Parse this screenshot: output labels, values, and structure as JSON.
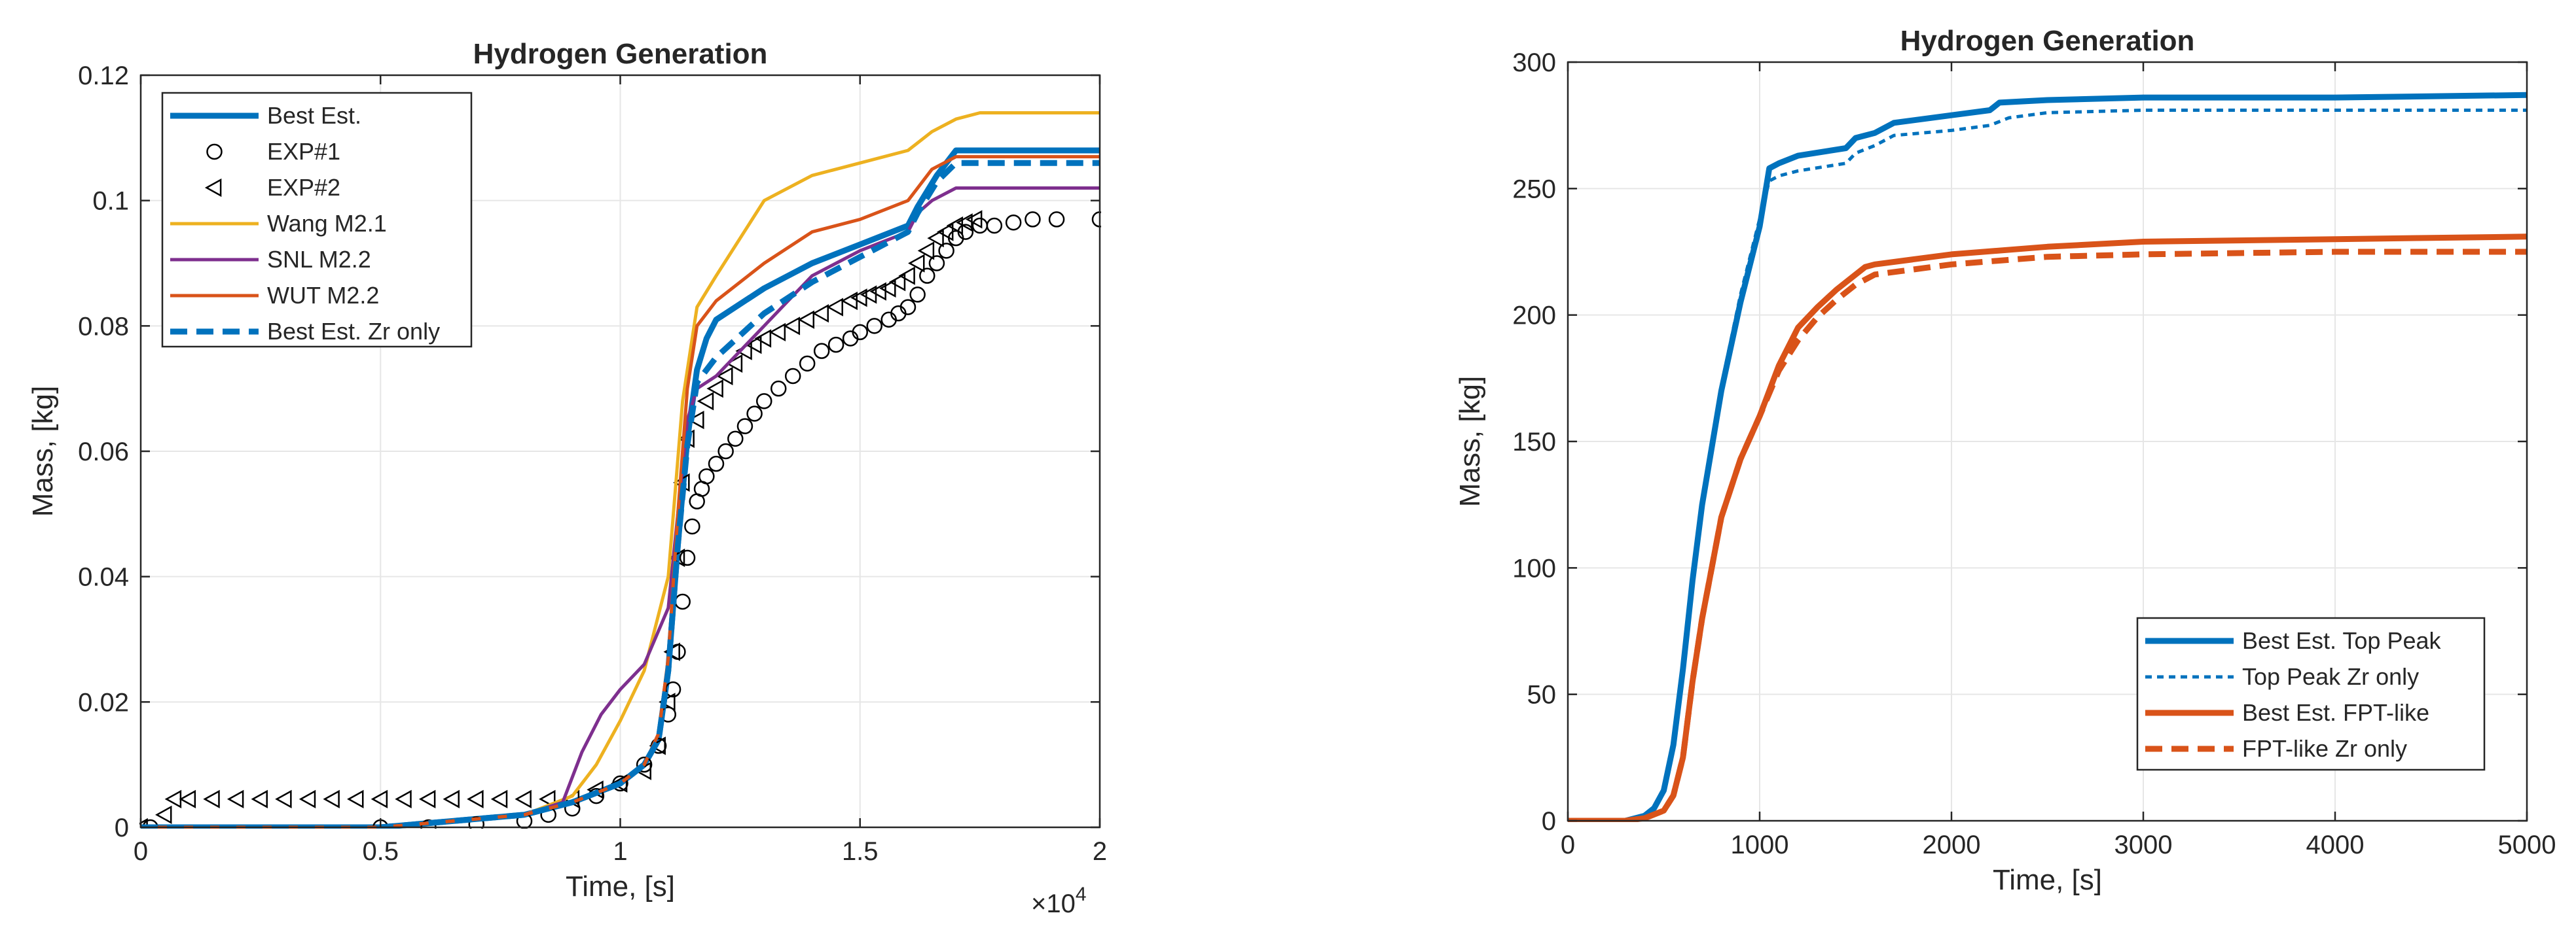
{
  "chart_data": [
    {
      "type": "line",
      "title": "Hydrogen Generation",
      "xlabel": "Time, [s]",
      "ylabel": "Mass, [kg]",
      "x_multiplier_label": "×10",
      "x_multiplier_exponent": "4",
      "xlim": [
        0,
        2
      ],
      "ylim": [
        0,
        0.12
      ],
      "xticks": [
        0,
        0.5,
        1,
        1.5,
        2
      ],
      "xtick_labels": [
        "0",
        "0.5",
        "1",
        "1.5",
        "2"
      ],
      "yticks": [
        0,
        0.02,
        0.04,
        0.06,
        0.08,
        0.1,
        0.12
      ],
      "ytick_labels": [
        "0",
        "0.02",
        "0.04",
        "0.06",
        "0.08",
        "0.1",
        "0.12"
      ],
      "grid": true,
      "legend_location": "top-left",
      "series": [
        {
          "name": "Best Est.",
          "style": "solid",
          "color": "#0072BD",
          "width": "thick",
          "x": [
            0,
            0.5,
            0.8,
            0.9,
            1.0,
            1.05,
            1.08,
            1.1,
            1.12,
            1.14,
            1.16,
            1.18,
            1.2,
            1.3,
            1.4,
            1.5,
            1.6,
            1.62,
            1.66,
            1.7,
            2.0
          ],
          "y": [
            0,
            0,
            0.002,
            0.004,
            0.007,
            0.01,
            0.014,
            0.025,
            0.045,
            0.062,
            0.073,
            0.078,
            0.081,
            0.086,
            0.09,
            0.093,
            0.096,
            0.099,
            0.104,
            0.108,
            0.108
          ]
        },
        {
          "name": "EXP#1",
          "style": "marker",
          "marker": "circle",
          "color": "#000000",
          "x": [
            0.02,
            0.5,
            0.6,
            0.7,
            0.8,
            0.85,
            0.9,
            0.95,
            1.0,
            1.05,
            1.08,
            1.1,
            1.11,
            1.12,
            1.13,
            1.14,
            1.15,
            1.16,
            1.17,
            1.18,
            1.2,
            1.22,
            1.24,
            1.26,
            1.28,
            1.3,
            1.33,
            1.36,
            1.39,
            1.42,
            1.45,
            1.48,
            1.5,
            1.53,
            1.56,
            1.58,
            1.6,
            1.62,
            1.64,
            1.66,
            1.68,
            1.7,
            1.72,
            1.75,
            1.78,
            1.82,
            1.86,
            1.91,
            2.0
          ],
          "y": [
            0,
            0,
            0,
            0.0005,
            0.001,
            0.002,
            0.003,
            0.005,
            0.007,
            0.01,
            0.013,
            0.018,
            0.022,
            0.028,
            0.036,
            0.043,
            0.048,
            0.052,
            0.054,
            0.056,
            0.058,
            0.06,
            0.062,
            0.064,
            0.066,
            0.068,
            0.07,
            0.072,
            0.074,
            0.076,
            0.077,
            0.078,
            0.079,
            0.08,
            0.081,
            0.082,
            0.083,
            0.085,
            0.088,
            0.09,
            0.092,
            0.094,
            0.095,
            0.096,
            0.096,
            0.0965,
            0.097,
            0.097,
            0.097
          ]
        },
        {
          "name": "EXP#2",
          "style": "marker",
          "marker": "triangle-left",
          "color": "#000000",
          "x": [
            0,
            0.05,
            0.07,
            0.1,
            0.15,
            0.2,
            0.25,
            0.3,
            0.35,
            0.4,
            0.45,
            0.5,
            0.55,
            0.6,
            0.65,
            0.7,
            0.75,
            0.8,
            0.85,
            0.9,
            0.95,
            1.0,
            1.05,
            1.08,
            1.1,
            1.11,
            1.12,
            1.13,
            1.14,
            1.16,
            1.18,
            1.2,
            1.22,
            1.24,
            1.26,
            1.28,
            1.3,
            1.33,
            1.36,
            1.39,
            1.42,
            1.45,
            1.48,
            1.5,
            1.52,
            1.54,
            1.56,
            1.58,
            1.6,
            1.62,
            1.64,
            1.66,
            1.68,
            1.7,
            1.72,
            1.74
          ],
          "y": [
            0,
            0.002,
            0.0045,
            0.0045,
            0.0045,
            0.0045,
            0.0045,
            0.0045,
            0.0045,
            0.0045,
            0.0045,
            0.0045,
            0.0045,
            0.0045,
            0.0045,
            0.0045,
            0.0045,
            0.0045,
            0.0045,
            0.0045,
            0.006,
            0.007,
            0.009,
            0.013,
            0.02,
            0.028,
            0.043,
            0.055,
            0.062,
            0.065,
            0.068,
            0.07,
            0.072,
            0.074,
            0.076,
            0.077,
            0.078,
            0.079,
            0.08,
            0.081,
            0.082,
            0.083,
            0.084,
            0.0845,
            0.085,
            0.0855,
            0.086,
            0.087,
            0.088,
            0.09,
            0.092,
            0.094,
            0.095,
            0.096,
            0.0965,
            0.097
          ]
        },
        {
          "name": "Wang M2.1",
          "style": "solid",
          "color": "#EDB120",
          "width": "normal",
          "x": [
            0,
            0.5,
            0.8,
            0.9,
            0.95,
            1.0,
            1.05,
            1.1,
            1.13,
            1.16,
            1.2,
            1.3,
            1.4,
            1.5,
            1.6,
            1.65,
            1.7,
            1.75,
            2.0
          ],
          "y": [
            0,
            0,
            0.002,
            0.005,
            0.01,
            0.017,
            0.025,
            0.04,
            0.068,
            0.083,
            0.088,
            0.1,
            0.104,
            0.106,
            0.108,
            0.111,
            0.113,
            0.114,
            0.114
          ]
        },
        {
          "name": "SNL M2.2",
          "style": "solid",
          "color": "#7E2F8E",
          "width": "normal",
          "x": [
            0,
            0.5,
            0.8,
            0.88,
            0.92,
            0.96,
            1.0,
            1.05,
            1.1,
            1.12,
            1.14,
            1.16,
            1.2,
            1.3,
            1.4,
            1.5,
            1.6,
            1.62,
            1.65,
            1.7,
            2.0
          ],
          "y": [
            0,
            0,
            0.002,
            0.004,
            0.012,
            0.018,
            0.022,
            0.026,
            0.035,
            0.05,
            0.065,
            0.07,
            0.072,
            0.08,
            0.088,
            0.092,
            0.095,
            0.098,
            0.1,
            0.102,
            0.102
          ]
        },
        {
          "name": "WUT M2.2",
          "style": "solid",
          "color": "#D95319",
          "width": "normal",
          "x": [
            0,
            0.5,
            0.8,
            0.9,
            1.0,
            1.05,
            1.08,
            1.1,
            1.12,
            1.14,
            1.16,
            1.2,
            1.3,
            1.4,
            1.5,
            1.6,
            1.62,
            1.65,
            1.7,
            2.0
          ],
          "y": [
            0,
            0,
            0.002,
            0.004,
            0.007,
            0.01,
            0.015,
            0.027,
            0.05,
            0.07,
            0.08,
            0.084,
            0.09,
            0.095,
            0.097,
            0.1,
            0.102,
            0.105,
            0.107,
            0.107
          ]
        },
        {
          "name": "Best Est. Zr only",
          "style": "dashed",
          "color": "#0072BD",
          "width": "thick",
          "x": [
            0,
            0.5,
            0.8,
            0.9,
            1.0,
            1.05,
            1.08,
            1.1,
            1.12,
            1.14,
            1.16,
            1.2,
            1.3,
            1.4,
            1.5,
            1.6,
            1.62,
            1.66,
            1.7,
            2.0
          ],
          "y": [
            0,
            0,
            0.002,
            0.004,
            0.007,
            0.01,
            0.014,
            0.025,
            0.045,
            0.061,
            0.071,
            0.075,
            0.082,
            0.087,
            0.091,
            0.095,
            0.098,
            0.103,
            0.106,
            0.106
          ]
        }
      ]
    },
    {
      "type": "line",
      "title": "Hydrogen Generation",
      "xlabel": "Time, [s]",
      "ylabel": "Mass, [kg]",
      "xlim": [
        0,
        5000
      ],
      "ylim": [
        0,
        300
      ],
      "xticks": [
        0,
        1000,
        2000,
        3000,
        4000,
        5000
      ],
      "xtick_labels": [
        "0",
        "1000",
        "2000",
        "3000",
        "4000",
        "5000"
      ],
      "yticks": [
        0,
        50,
        100,
        150,
        200,
        250,
        300
      ],
      "ytick_labels": [
        "0",
        "50",
        "100",
        "150",
        "200",
        "250",
        "300"
      ],
      "grid": true,
      "legend_location": "bottom-right",
      "series": [
        {
          "name": "Best Est. Top Peak",
          "style": "solid",
          "color": "#0072BD",
          "width": "thick",
          "x": [
            0,
            300,
            400,
            450,
            500,
            550,
            600,
            650,
            700,
            800,
            900,
            1000,
            1050,
            1100,
            1200,
            1450,
            1500,
            1600,
            1700,
            2000,
            2200,
            2250,
            2500,
            3000,
            4000,
            5000
          ],
          "y": [
            0,
            0,
            2,
            5,
            12,
            30,
            60,
            95,
            125,
            170,
            205,
            235,
            258,
            260,
            263,
            266,
            270,
            272,
            276,
            279,
            281,
            284,
            285,
            286,
            286,
            287
          ]
        },
        {
          "name": "Top Peak Zr only",
          "style": "dotted",
          "color": "#0072BD",
          "width": "normal",
          "x": [
            0,
            300,
            400,
            450,
            500,
            550,
            600,
            650,
            700,
            800,
            900,
            1000,
            1050,
            1100,
            1200,
            1450,
            1500,
            1600,
            1700,
            2000,
            2200,
            2300,
            2500,
            3000,
            4000,
            5000
          ],
          "y": [
            0,
            0,
            2,
            5,
            12,
            30,
            60,
            95,
            125,
            172,
            208,
            238,
            253,
            255,
            257,
            260,
            264,
            267,
            271,
            273,
            275,
            278,
            280,
            281,
            281,
            281
          ]
        },
        {
          "name": "Best Est. FPT-like",
          "style": "solid",
          "color": "#D95319",
          "width": "thick",
          "x": [
            0,
            300,
            400,
            500,
            550,
            600,
            650,
            700,
            750,
            800,
            900,
            1000,
            1100,
            1200,
            1300,
            1400,
            1500,
            1550,
            1600,
            1800,
            2000,
            2500,
            3000,
            4000,
            5000
          ],
          "y": [
            0,
            0,
            1,
            4,
            10,
            25,
            55,
            80,
            100,
            120,
            143,
            160,
            180,
            195,
            203,
            210,
            216,
            219,
            220,
            222,
            224,
            227,
            229,
            230,
            231
          ]
        },
        {
          "name": "FPT-like Zr only",
          "style": "dashed",
          "color": "#D95319",
          "width": "thick",
          "x": [
            0,
            300,
            400,
            500,
            550,
            600,
            650,
            700,
            750,
            800,
            900,
            1000,
            1100,
            1200,
            1300,
            1400,
            1500,
            1550,
            1600,
            1800,
            2000,
            2500,
            3000,
            4000,
            5000
          ],
          "y": [
            0,
            0,
            1,
            4,
            10,
            25,
            55,
            80,
            100,
            120,
            143,
            160,
            178,
            190,
            199,
            206,
            212,
            214,
            216,
            218,
            220,
            223,
            224,
            225,
            225
          ]
        }
      ]
    }
  ]
}
